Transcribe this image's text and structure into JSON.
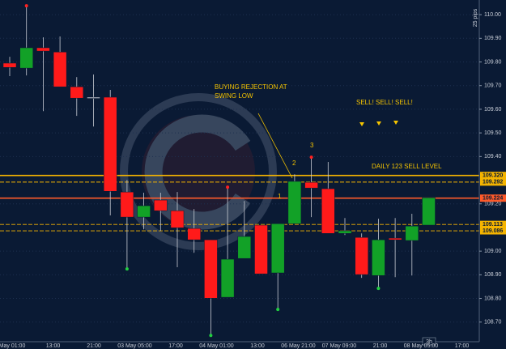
{
  "chart_data": {
    "type": "candlestick",
    "up_color": "#12a127",
    "down_color": "#ff1a1a",
    "wick_color": "#c8ccd4",
    "background": "#0a1a34",
    "grid": true,
    "ylim": [
      108.617,
      110.062
    ],
    "yticks": [
      {
        "value": 110.0,
        "label": "110.00"
      },
      {
        "value": 109.9,
        "label": "109.90"
      },
      {
        "value": 109.8,
        "label": "109.80"
      },
      {
        "value": 109.7,
        "label": "109.70"
      },
      {
        "value": 109.6,
        "label": "109.60"
      },
      {
        "value": 109.5,
        "label": "109.50"
      },
      {
        "value": 109.4,
        "label": "109.40"
      },
      {
        "value": 109.2,
        "label": "109.20"
      },
      {
        "value": 109.0,
        "label": "109.00"
      },
      {
        "value": 108.9,
        "label": "108.90"
      },
      {
        "value": 108.8,
        "label": "108.80"
      },
      {
        "value": 108.7,
        "label": "108.70"
      }
    ],
    "xtick_labels": [
      "May 01:00",
      "13:00",
      "21:00",
      "03 May 05:00",
      "17:00",
      "04 May 01:00",
      "13:00",
      "06 May 21:00",
      "07 May 09:00",
      "21:00",
      "08 May 05:00",
      "17:00"
    ],
    "open": [
      109.795,
      109.774,
      109.86,
      109.842,
      109.695,
      109.651,
      109.651,
      109.25,
      109.144,
      109.216,
      109.171,
      109.096,
      109.048,
      108.805,
      108.969,
      109.11,
      108.908,
      109.116,
      109.291,
      109.264,
      109.075,
      109.058,
      108.897,
      109.055,
      109.045,
      109.11
    ],
    "high": [
      109.822,
      110.034,
      109.904,
      109.908,
      109.736,
      109.747,
      109.682,
      109.301,
      109.247,
      109.247,
      109.25,
      109.178,
      109.048,
      109.267,
      109.212,
      109.11,
      109.116,
      109.325,
      109.394,
      109.377,
      109.14,
      109.075,
      109.137,
      109.14,
      109.158,
      109.226
    ],
    "low": [
      109.74,
      109.743,
      109.592,
      109.695,
      109.572,
      109.527,
      109.151,
      108.928,
      109.092,
      109.086,
      108.932,
      108.993,
      108.647,
      108.805,
      108.969,
      108.904,
      108.757,
      109.116,
      109.144,
      109.075,
      109.068,
      108.887,
      108.846,
      108.89,
      108.897,
      109.11
    ],
    "close": [
      109.777,
      109.86,
      109.846,
      109.695,
      109.647,
      109.651,
      109.253,
      109.144,
      109.192,
      109.171,
      109.099,
      109.048,
      108.801,
      108.966,
      109.062,
      108.904,
      109.116,
      109.295,
      109.267,
      109.075,
      109.086,
      108.901,
      109.048,
      109.048,
      109.106,
      109.226
    ],
    "fractal_up": [
      1,
      13,
      18
    ],
    "fractal_down": [
      7,
      12,
      16,
      22
    ],
    "levels": [
      {
        "value": 109.32,
        "label": "109.320",
        "color": "#f5b400",
        "style": "solid"
      },
      {
        "value": 109.292,
        "label": "109.292",
        "color": "#f5b400",
        "style": "dashed"
      },
      {
        "value": 109.224,
        "label": "109.224",
        "color": "#ff5a2a",
        "style": "solid"
      },
      {
        "value": 109.113,
        "label": "109.113",
        "color": "#f5b400",
        "style": "dashed"
      },
      {
        "value": 109.086,
        "label": "109.086",
        "color": "#f5b400",
        "style": "dashed"
      }
    ],
    "annotations": {
      "buying_rejection": [
        "BUYING REJECTION AT",
        "SWING LOW"
      ],
      "sell": "SELL! SELL! SELL!",
      "daily_level": "DAILY 123 SELL LEVEL",
      "point_1": "1",
      "point_2": "2",
      "point_3": "3",
      "scale_note": "25 pips",
      "timeframe": "3h"
    }
  }
}
